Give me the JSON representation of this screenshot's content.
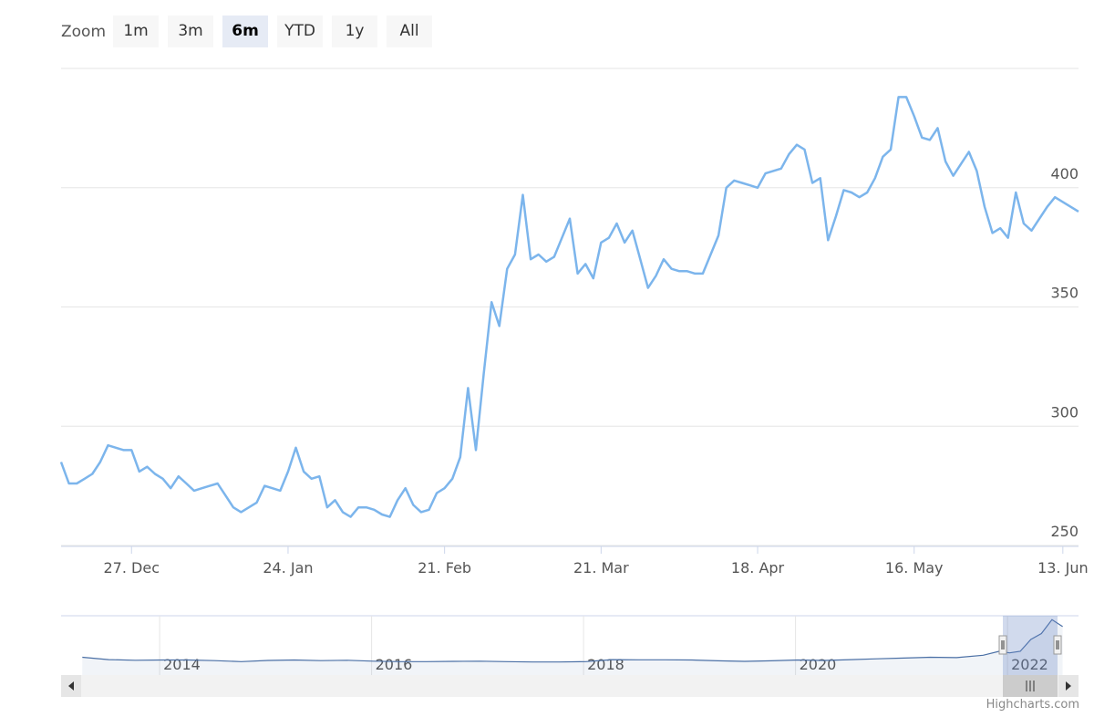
{
  "zoom": {
    "label": "Zoom",
    "buttons": [
      "1m",
      "3m",
      "6m",
      "YTD",
      "1y",
      "All"
    ],
    "selected": 2
  },
  "chart_data": {
    "type": "line",
    "color": "#7cb5ec",
    "categories": [
      null,
      null,
      null,
      null,
      null,
      null,
      null,
      null,
      null,
      "27. Dec",
      null,
      null,
      null,
      null,
      null,
      null,
      null,
      null,
      null,
      null,
      null,
      null,
      null,
      null,
      null,
      null,
      null,
      null,
      null,
      "24. Jan",
      null,
      null,
      null,
      null,
      null,
      null,
      null,
      null,
      null,
      null,
      null,
      null,
      null,
      null,
      null,
      null,
      null,
      null,
      null,
      "21. Feb",
      null,
      null,
      null,
      null,
      null,
      null,
      null,
      null,
      null,
      null,
      null,
      null,
      null,
      null,
      null,
      null,
      null,
      null,
      null,
      "21. Mar",
      null,
      null,
      null,
      null,
      null,
      null,
      null,
      null,
      null,
      null,
      null,
      null,
      null,
      null,
      null,
      null,
      null,
      null,
      null,
      "18. Apr",
      null,
      null,
      null,
      null,
      null,
      null,
      null,
      null,
      null,
      null,
      null,
      null,
      null,
      null,
      null,
      null,
      null,
      null,
      null,
      "16. May",
      null,
      null,
      null,
      null,
      null,
      null,
      null,
      null,
      null,
      null,
      null,
      null,
      null,
      null,
      null,
      null,
      null,
      null,
      "13. Jun",
      null,
      null
    ],
    "values": [
      285,
      276,
      276,
      278,
      280,
      285,
      292,
      291,
      290,
      290,
      281,
      283,
      280,
      278,
      274,
      279,
      276,
      273,
      274,
      275,
      276,
      271,
      266,
      264,
      266,
      268,
      275,
      274,
      273,
      281,
      291,
      281,
      278,
      279,
      266,
      269,
      264,
      262,
      266,
      266,
      265,
      263,
      262,
      269,
      274,
      267,
      264,
      265,
      272,
      274,
      278,
      287,
      316,
      290,
      322,
      352,
      342,
      366,
      372,
      397,
      370,
      372,
      369,
      371,
      379,
      387,
      364,
      368,
      362,
      377,
      379,
      385,
      377,
      382,
      370,
      358,
      363,
      370,
      366,
      365,
      365,
      364,
      364,
      372,
      380,
      400,
      403,
      402,
      401,
      400,
      406,
      407,
      408,
      414,
      418,
      416,
      402,
      404,
      378,
      388,
      399,
      398,
      396,
      398,
      404,
      413,
      416,
      438,
      438,
      430,
      421,
      420,
      425,
      411,
      405,
      410,
      415,
      407,
      392,
      381,
      383,
      379,
      398,
      385,
      382,
      387,
      392,
      396,
      394,
      392,
      390
    ],
    "ylim": [
      250,
      450
    ],
    "yticks": [
      250,
      300,
      350,
      400
    ],
    "grid": true,
    "navigator": {
      "color": "#4a6fa5",
      "xlim": [
        2013.07,
        2022.67
      ],
      "ylim": [
        150,
        450
      ],
      "xticks": [
        2014,
        2016,
        2018,
        2020,
        2022
      ],
      "x": [
        2013.27,
        2013.52,
        2013.77,
        2014.02,
        2014.27,
        2014.52,
        2014.77,
        2015.02,
        2015.27,
        2015.52,
        2015.77,
        2016.02,
        2016.27,
        2016.52,
        2016.77,
        2017.02,
        2017.27,
        2017.52,
        2017.77,
        2018.02,
        2018.27,
        2018.52,
        2018.77,
        2019.02,
        2019.27,
        2019.52,
        2019.77,
        2020.02,
        2020.27,
        2020.52,
        2020.77,
        2021.02,
        2021.27,
        2021.52,
        2021.77,
        2021.92,
        2022.02,
        2022.12,
        2022.22,
        2022.32,
        2022.42,
        2022.52
      ],
      "values": [
        240,
        228,
        225,
        226,
        226,
        223,
        218,
        224,
        226,
        223,
        225,
        220,
        218,
        218,
        219,
        220,
        218,
        216,
        216,
        218,
        228,
        227,
        227,
        226,
        222,
        219,
        222,
        226,
        224,
        228,
        232,
        236,
        240,
        238,
        250,
        270,
        262,
        270,
        330,
        360,
        430,
        395
      ]
    }
  },
  "credit": "Highcharts.com"
}
